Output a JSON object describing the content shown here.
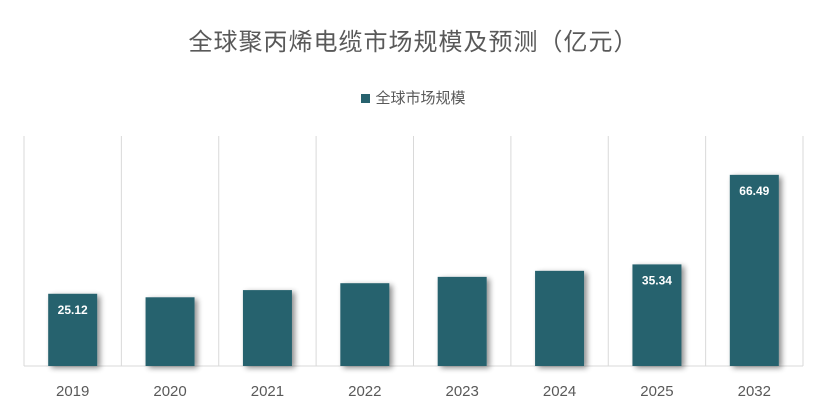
{
  "chart_data": {
    "type": "bar",
    "title": "全球聚丙烯电缆市场规模及预测（亿元）",
    "legend": "全球市场规模",
    "categories": [
      "2019",
      "2020",
      "2021",
      "2022",
      "2023",
      "2024",
      "2025",
      "2032"
    ],
    "values": [
      25.12,
      23.9,
      26.4,
      28.8,
      31.0,
      33.1,
      35.34,
      66.49
    ],
    "labels": [
      "25.12",
      "",
      "",
      "",
      "",
      "",
      "35.34",
      "66.49"
    ],
    "ylim": [
      0,
      80
    ],
    "colors": {
      "bar": "#27626e",
      "label": "#ffffff",
      "grid": "#d9d9d9",
      "text": "#595959"
    }
  }
}
